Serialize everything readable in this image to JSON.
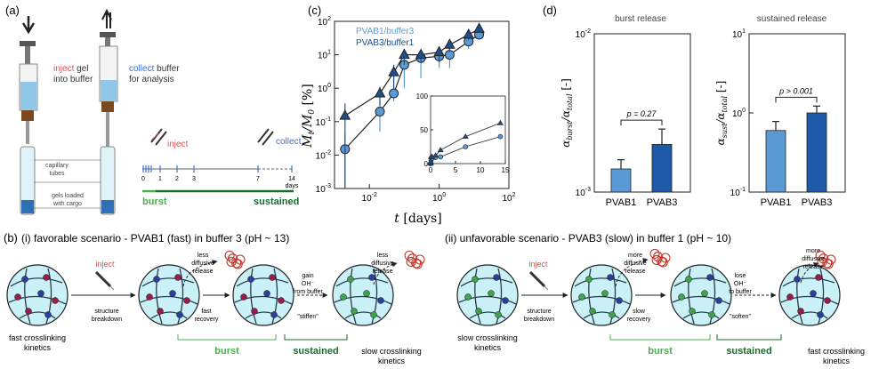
{
  "panel_a": {
    "label": "(a)",
    "inject_word": "inject",
    "inject_rest": " gel",
    "inject_line2": "into buffer",
    "collect_word": "collect",
    "collect_rest": " buffer",
    "collect_line2": "for analysis",
    "capillary_line1": "capillary",
    "capillary_line2": "tubes",
    "gels_line1": "gels loaded",
    "gels_line2": "with cargo",
    "timeline_inject": "inject",
    "timeline_collect": "collect",
    "timeline_ticks": [
      "0",
      "1",
      "2",
      "3",
      "7",
      "14"
    ],
    "timeline_days": "days",
    "burst": "burst",
    "sustained": "sustained"
  },
  "panel_c": {
    "label": "(c)",
    "chart_data": {
      "type": "line",
      "xscale": "log",
      "yscale": "log",
      "xlim": [
        0.001,
        100
      ],
      "ylim": [
        0.001,
        100
      ],
      "xlabel": "t [days]",
      "ylabel": "M_t/M_0 [%]",
      "xticks": [
        "10^-2",
        "10^0",
        "10^2"
      ],
      "yticks": [
        "10^-3",
        "10^-2",
        "10^-1",
        "10^0",
        "10^1",
        "10^2"
      ],
      "series": [
        {
          "name": "PVAB1/buffer3",
          "marker": "circle",
          "color": "#5b9bd5",
          "x": [
            0.002,
            0.02,
            0.05,
            0.1,
            0.3,
            1,
            2,
            7,
            14
          ],
          "y": [
            0.015,
            0.2,
            0.7,
            5,
            8,
            9,
            10,
            25,
            40
          ],
          "err": [
            0.03,
            0.15,
            0.3,
            4,
            6,
            5,
            6,
            10,
            10
          ]
        },
        {
          "name": "PVAB3/buffer1",
          "marker": "triangle",
          "color": "#1f4e8c",
          "x": [
            0.002,
            0.02,
            0.05,
            0.1,
            0.3,
            1,
            2,
            7,
            14
          ],
          "y": [
            0.15,
            0.7,
            3,
            10,
            10,
            12,
            20,
            40,
            60
          ],
          "err": [
            0.2,
            0.4,
            2,
            5,
            4,
            6,
            8,
            12,
            10
          ]
        }
      ],
      "inset": {
        "type": "line",
        "xlim": [
          0,
          15
        ],
        "ylim": [
          0,
          100
        ],
        "xticks": [
          "0",
          "5",
          "10",
          "15"
        ],
        "yticks": [
          "0",
          "50",
          "100"
        ],
        "series": [
          {
            "name": "PVAB1/buffer3",
            "x": [
              0.002,
              0.02,
              0.05,
              0.1,
              0.3,
              1,
              2,
              7,
              14
            ],
            "y": [
              0.015,
              0.2,
              0.7,
              5,
              8,
              9,
              10,
              25,
              40
            ]
          },
          {
            "name": "PVAB3/buffer1",
            "x": [
              0.002,
              0.02,
              0.05,
              0.1,
              0.3,
              1,
              2,
              7,
              14
            ],
            "y": [
              0.15,
              0.7,
              3,
              10,
              10,
              12,
              20,
              40,
              60
            ]
          }
        ]
      }
    }
  },
  "panel_d": {
    "label": "(d)",
    "chart_data": [
      {
        "type": "bar",
        "title": "burst release",
        "yscale": "log",
        "ylim": [
          0.001,
          0.01
        ],
        "yticks": [
          "10^-3",
          "10^-2"
        ],
        "ylabel": "α_burst/α_total [-]",
        "categories": [
          "PVAB1",
          "PVAB3"
        ],
        "values": [
          0.0014,
          0.002
        ],
        "errors": [
          0.0002,
          0.0005
        ],
        "colors": [
          "#5b9bd5",
          "#1f5aa8"
        ],
        "annotation": "p = 0.27"
      },
      {
        "type": "bar",
        "title": "sustained release",
        "yscale": "log",
        "ylim": [
          0.1,
          10
        ],
        "yticks": [
          "10^-1",
          "10^0",
          "10^1"
        ],
        "ylabel": "α_sust/α_total [-]",
        "categories": [
          "PVAB1",
          "PVAB3"
        ],
        "values": [
          0.6,
          1.0
        ],
        "errors": [
          0.18,
          0.22
        ],
        "colors": [
          "#5b9bd5",
          "#1f5aa8"
        ],
        "annotation": "p > 0.001"
      }
    ]
  },
  "panel_b": {
    "label": "(b)",
    "i_title": "(i) favorable scenario - PVAB1 (fast) in buffer 3 (pH ~ 13)",
    "ii_title": "(ii) unfavorable scenario - PVAB3 (slow) in buffer 1 (pH ~ 10)",
    "inject": "inject",
    "structure_1": "structure",
    "structure_2": "breakdown",
    "i_start_1": "fast crosslinking",
    "i_start_2": "kinetics",
    "i_release1_1": "less",
    "i_release1_2": "diffusive",
    "i_release1_3": "release",
    "i_recovery_1": "fast",
    "i_recovery_2": "recovery",
    "i_gain_1": "gain",
    "i_gain_2": "OH⁻",
    "i_gain_3": "from buffer",
    "i_stiffen": "\"stiffen\"",
    "i_release2_1": "less",
    "i_release2_2": "diffusive",
    "i_release2_3": "release",
    "i_end_1": "slow crosslinking",
    "i_end_2": "kinetics",
    "ii_start_1": "slow crosslinking",
    "ii_start_2": "kinetics",
    "ii_release1_1": "more",
    "ii_release1_2": "diffusive",
    "ii_release1_3": "release",
    "ii_recovery_1": "slow",
    "ii_recovery_2": "recovery",
    "ii_lose_1": "lose",
    "ii_lose_2": "OH⁻",
    "ii_lose_3": "to buffer",
    "ii_soften": "\"soften\"",
    "ii_release2_1": "more",
    "ii_release2_2": "diffusive",
    "ii_release2_3": "release",
    "ii_end_1": "fast crosslinking",
    "ii_end_2": "kinetics",
    "burst": "burst",
    "sustained": "sustained"
  },
  "colors": {
    "light_blue": "#5b9bd5",
    "dark_blue": "#1f4e8c",
    "bar_dark": "#1f5aa8",
    "cyan_fill": "#c9f1f7",
    "burst_green": "#4caf50",
    "sustained_green": "#1b6b2e",
    "inject_red": "#d9534f",
    "collect_blue": "#3d6fd8",
    "cargo_red": "#c0392b"
  }
}
